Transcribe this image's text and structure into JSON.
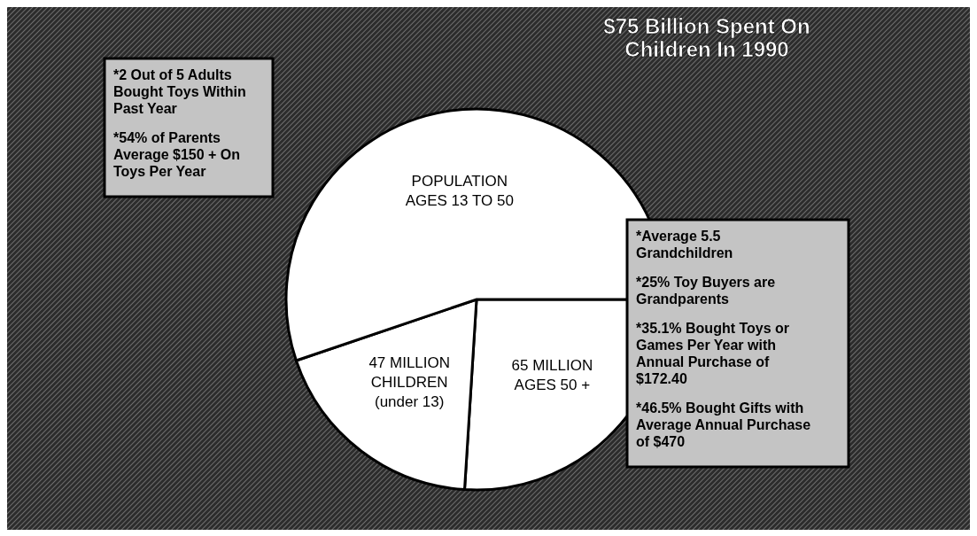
{
  "chart_data": {
    "type": "pie",
    "title": "$75 Billion Spent On Children In 1990",
    "categories": [
      "65 MILLION AGES 50 +",
      "47 MILLION CHILDREN (under 13)",
      "POPULATION AGES 13 TO 50"
    ],
    "values": [
      65,
      47,
      138
    ],
    "colors": [
      "#ffffff",
      "#ffffff",
      "#ffffff"
    ],
    "annotations": [
      "*2 Out of 5 Adults Bought Toys Within Past Year",
      "*54% of Parents Average $150 + On Toys Per Year",
      "*Average 5.5 Grandchildren",
      "*25% Toy Buyers are Grandparents",
      "*35.1% Bought Toys or Games Per Year with Annual Purchase of $172.40",
      "*46.5% Bought Gifts with Average Annual Purchase of $470"
    ]
  }
}
